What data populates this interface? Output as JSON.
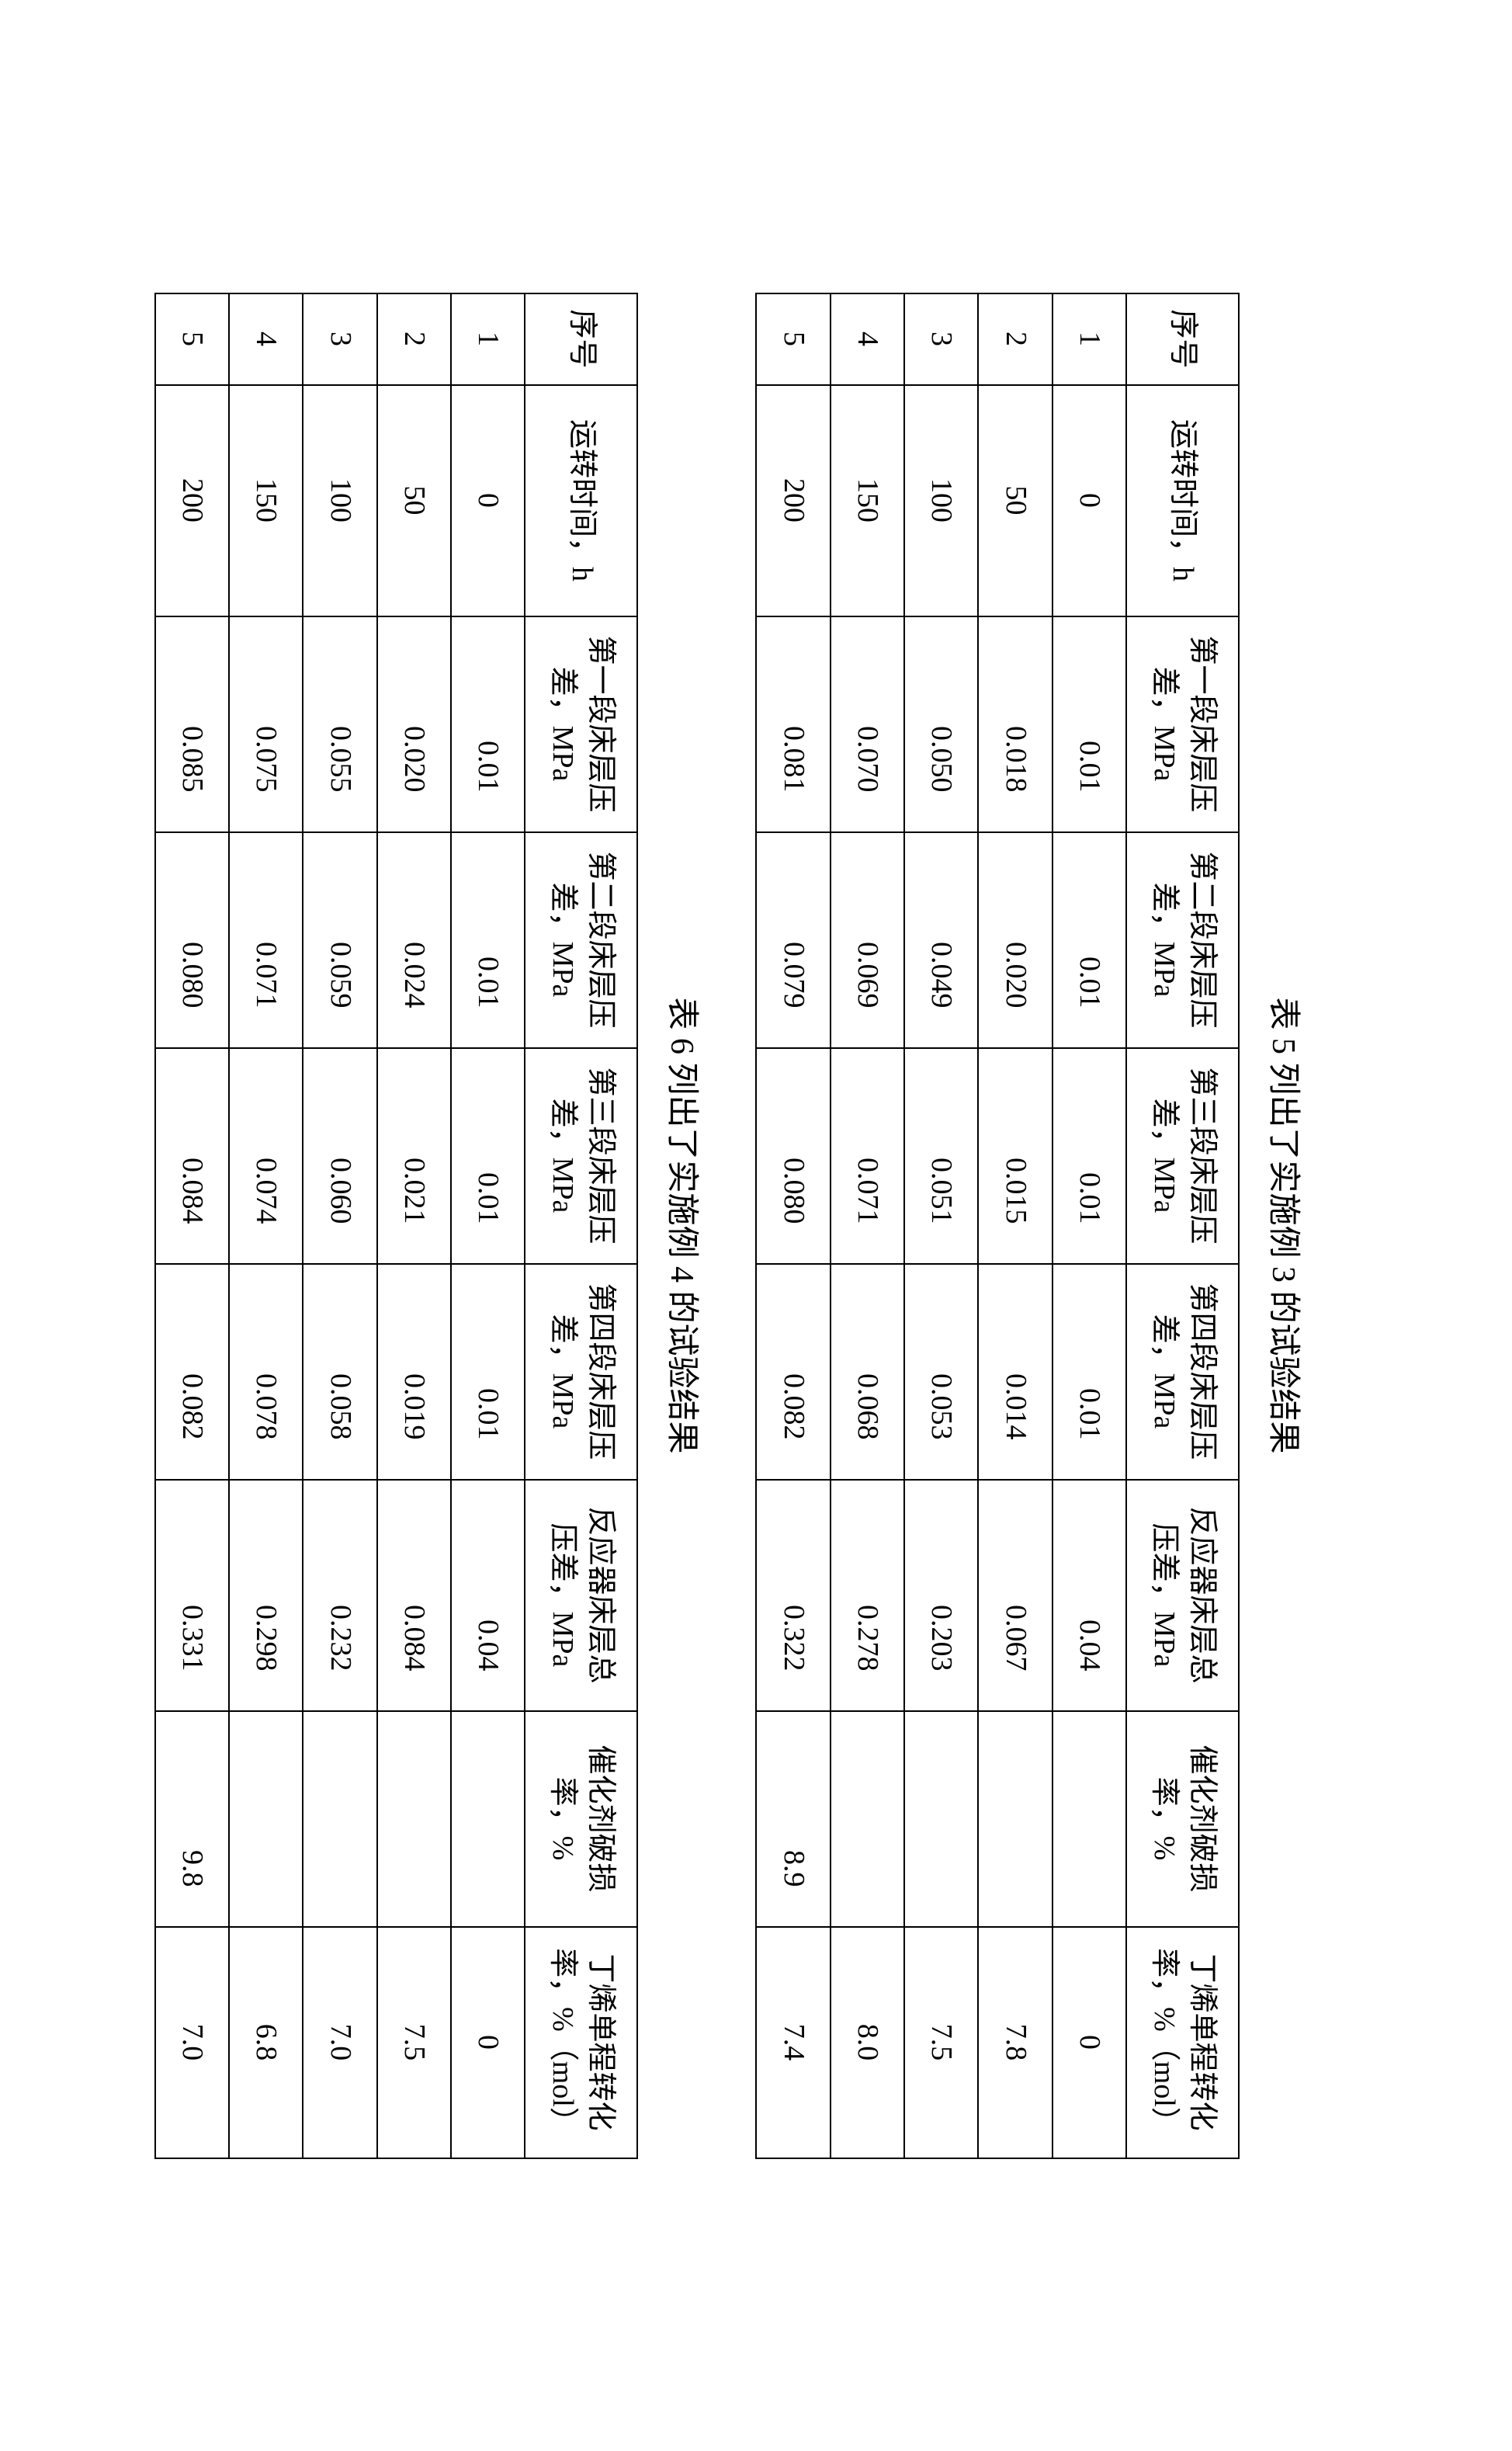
{
  "captions": {
    "t5": "表 5 列出了实施例 3 的试验结果",
    "t6": "表 6 列出了实施例 4 的试验结果"
  },
  "headers": {
    "seq": "序号",
    "time": "运转时间，h",
    "p1": "第一段床层压差，MPa",
    "p2": "第二段床层压差，MPa",
    "p3": "第三段床层压差，MPa",
    "p4": "第四段床层压差，MPa",
    "total": "反应器床层总压差，MPa",
    "breakage": "催化剂破损率，%",
    "conv": "丁烯单程转化率，%（mol）"
  },
  "table5": {
    "rows": [
      {
        "seq": "1",
        "time": "0",
        "p1": "0.01",
        "p2": "0.01",
        "p3": "0.01",
        "p4": "0.01",
        "total": "0.04",
        "brk": "",
        "conv": "0"
      },
      {
        "seq": "2",
        "time": "50",
        "p1": "0.018",
        "p2": "0.020",
        "p3": "0.015",
        "p4": "0.014",
        "total": "0.067",
        "brk": "",
        "conv": "7.8"
      },
      {
        "seq": "3",
        "time": "100",
        "p1": "0.050",
        "p2": "0.049",
        "p3": "0.051",
        "p4": "0.053",
        "total": "0.203",
        "brk": "",
        "conv": "7.5"
      },
      {
        "seq": "4",
        "time": "150",
        "p1": "0.070",
        "p2": "0.069",
        "p3": "0.071",
        "p4": "0.068",
        "total": "0.278",
        "brk": "",
        "conv": "8.0"
      },
      {
        "seq": "5",
        "time": "200",
        "p1": "0.081",
        "p2": "0.079",
        "p3": "0.080",
        "p4": "0.082",
        "total": "0.322",
        "brk": "8.9",
        "conv": "7.4"
      }
    ]
  },
  "table6": {
    "rows": [
      {
        "seq": "1",
        "time": "0",
        "p1": "0.01",
        "p2": "0.01",
        "p3": "0.01",
        "p4": "0.01",
        "total": "0.04",
        "brk": "",
        "conv": "0"
      },
      {
        "seq": "2",
        "time": "50",
        "p1": "0.020",
        "p2": "0.024",
        "p3": "0.021",
        "p4": "0.019",
        "total": "0.084",
        "brk": "",
        "conv": "7.5"
      },
      {
        "seq": "3",
        "time": "100",
        "p1": "0.055",
        "p2": "0.059",
        "p3": "0.060",
        "p4": "0.058",
        "total": "0.232",
        "brk": "",
        "conv": "7.0"
      },
      {
        "seq": "4",
        "time": "150",
        "p1": "0.075",
        "p2": "0.071",
        "p3": "0.074",
        "p4": "0.078",
        "total": "0.298",
        "brk": "",
        "conv": "6.8"
      },
      {
        "seq": "5",
        "time": "200",
        "p1": "0.085",
        "p2": "0.080",
        "p3": "0.084",
        "p4": "0.082",
        "total": "0.331",
        "brk": "9.8",
        "conv": "7.0"
      }
    ]
  }
}
